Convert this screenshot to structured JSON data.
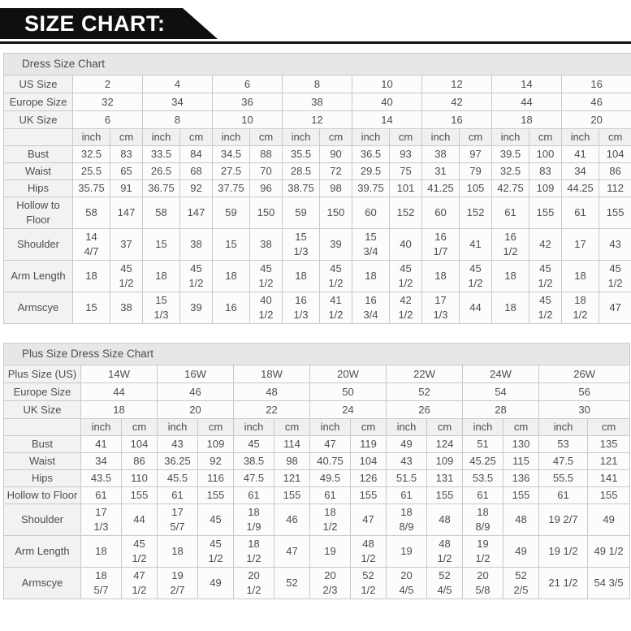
{
  "banner": {
    "title": "SIZE CHART:"
  },
  "units": {
    "inch": "inch",
    "cm": "cm"
  },
  "colors": {
    "banner_bg": "#0f0f0f",
    "banner_text": "#ffffff",
    "title_row_bg": "#e7e7e7",
    "label_col_bg": "#f2f2f2",
    "cell_bg": "#fcfcfc",
    "border": "#c9c9c9",
    "text": "#4d4d4d"
  },
  "tables": [
    {
      "title": "Dress Size Chart",
      "size_rows": [
        {
          "label": "US Size",
          "values": [
            "2",
            "4",
            "6",
            "8",
            "10",
            "12",
            "14",
            "16"
          ]
        },
        {
          "label": "Europe Size",
          "values": [
            "32",
            "34",
            "36",
            "38",
            "40",
            "42",
            "44",
            "46"
          ]
        },
        {
          "label": "UK Size",
          "values": [
            "6",
            "8",
            "10",
            "12",
            "14",
            "16",
            "18",
            "20"
          ]
        }
      ],
      "measurement_rows": [
        {
          "label": "Bust",
          "inch": [
            "32.5",
            "33.5",
            "34.5",
            "35.5",
            "36.5",
            "38",
            "39.5",
            "41"
          ],
          "cm": [
            "83",
            "84",
            "88",
            "90",
            "93",
            "97",
            "100",
            "104"
          ]
        },
        {
          "label": "Waist",
          "inch": [
            "25.5",
            "26.5",
            "27.5",
            "28.5",
            "29.5",
            "31",
            "32.5",
            "34"
          ],
          "cm": [
            "65",
            "68",
            "70",
            "72",
            "75",
            "79",
            "83",
            "86"
          ]
        },
        {
          "label": "Hips",
          "inch": [
            "35.75",
            "36.75",
            "37.75",
            "38.75",
            "39.75",
            "41.25",
            "42.75",
            "44.25"
          ],
          "cm": [
            "91",
            "92",
            "96",
            "98",
            "101",
            "105",
            "109",
            "112"
          ]
        },
        {
          "label": "Hollow to Floor",
          "inch": [
            "58",
            "58",
            "59",
            "59",
            "60",
            "60",
            "61",
            "61"
          ],
          "cm": [
            "147",
            "147",
            "150",
            "150",
            "152",
            "152",
            "155",
            "155"
          ]
        },
        {
          "label": "Shoulder",
          "inch": [
            "14 4/7",
            "15",
            "15",
            "15 1/3",
            "15 3/4",
            "16 1/7",
            "16 1/2",
            "17"
          ],
          "cm": [
            "37",
            "38",
            "38",
            "39",
            "40",
            "41",
            "42",
            "43"
          ]
        },
        {
          "label": "Arm Length",
          "inch": [
            "18",
            "18",
            "18",
            "18",
            "18",
            "18",
            "18",
            "18"
          ],
          "cm": [
            "45 1/2",
            "45 1/2",
            "45 1/2",
            "45 1/2",
            "45 1/2",
            "45 1/2",
            "45 1/2",
            "45 1/2"
          ]
        },
        {
          "label": "Armscye",
          "inch": [
            "15",
            "15 1/3",
            "16",
            "16 1/3",
            "16 3/4",
            "17 1/3",
            "18",
            "18 1/2"
          ],
          "cm": [
            "38",
            "39",
            "40 1/2",
            "41 1/2",
            "42 1/2",
            "44",
            "45 1/2",
            "47"
          ]
        }
      ]
    },
    {
      "title": "Plus Size Dress Size Chart",
      "size_rows": [
        {
          "label": "Plus Size (US)",
          "values": [
            "14W",
            "16W",
            "18W",
            "20W",
            "22W",
            "24W",
            "26W"
          ]
        },
        {
          "label": "Europe Size",
          "values": [
            "44",
            "46",
            "48",
            "50",
            "52",
            "54",
            "56"
          ]
        },
        {
          "label": "UK Size",
          "values": [
            "18",
            "20",
            "22",
            "24",
            "26",
            "28",
            "30"
          ]
        }
      ],
      "measurement_rows": [
        {
          "label": "Bust",
          "inch": [
            "41",
            "43",
            "45",
            "47",
            "49",
            "51",
            "53"
          ],
          "cm": [
            "104",
            "109",
            "114",
            "119",
            "124",
            "130",
            "135"
          ]
        },
        {
          "label": "Waist",
          "inch": [
            "34",
            "36.25",
            "38.5",
            "40.75",
            "43",
            "45.25",
            "47.5"
          ],
          "cm": [
            "86",
            "92",
            "98",
            "104",
            "109",
            "115",
            "121"
          ]
        },
        {
          "label": "Hips",
          "inch": [
            "43.5",
            "45.5",
            "47.5",
            "49.5",
            "51.5",
            "53.5",
            "55.5"
          ],
          "cm": [
            "110",
            "116",
            "121",
            "126",
            "131",
            "136",
            "141"
          ]
        },
        {
          "label": "Hollow to Floor",
          "inch": [
            "61",
            "61",
            "61",
            "61",
            "61",
            "61",
            "61"
          ],
          "cm": [
            "155",
            "155",
            "155",
            "155",
            "155",
            "155",
            "155"
          ]
        },
        {
          "label": "Shoulder",
          "inch": [
            "17 1/3",
            "17 5/7",
            "18 1/9",
            "18 1/2",
            "18 8/9",
            "18 8/9",
            "19 2/7"
          ],
          "cm": [
            "44",
            "45",
            "46",
            "47",
            "48",
            "48",
            "49"
          ]
        },
        {
          "label": "Arm Length",
          "inch": [
            "18",
            "18",
            "18 1/2",
            "19",
            "19",
            "19 1/2",
            "19 1/2"
          ],
          "cm": [
            "45 1/2",
            "45 1/2",
            "47",
            "48 1/2",
            "48 1/2",
            "49",
            "49 1/2"
          ]
        },
        {
          "label": "Armscye",
          "inch": [
            "18 5/7",
            "19 2/7",
            "20 1/2",
            "20 2/3",
            "20 4/5",
            "20 5/8",
            "21 1/2"
          ],
          "cm": [
            "47 1/2",
            "49",
            "52",
            "52 1/2",
            "52 4/5",
            "52 2/5",
            "54 3/5"
          ]
        }
      ]
    }
  ]
}
